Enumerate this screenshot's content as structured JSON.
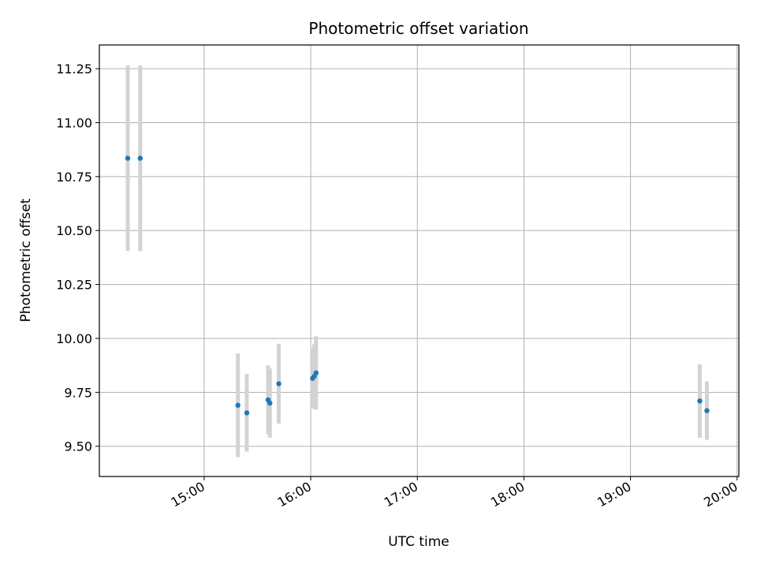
{
  "chart_data": {
    "type": "scatter",
    "title": "Photometric offset variation",
    "xlabel": "UTC time",
    "ylabel": "Photometric offset",
    "x_ticks": [
      "15:00",
      "16:00",
      "17:00",
      "18:00",
      "19:00",
      "20:00"
    ],
    "y_ticks": [
      "9.50",
      "9.75",
      "10.00",
      "10.25",
      "10.50",
      "10.75",
      "11.00",
      "11.25"
    ],
    "xlim": [
      "14:01",
      "20:01"
    ],
    "ylim": [
      9.36,
      11.36
    ],
    "grid": true,
    "point_color": "#1f77b4",
    "errorbar_color": "#d3d3d3",
    "points": [
      {
        "time": "14:17",
        "y": 10.835,
        "yerr": 0.43
      },
      {
        "time": "14:24",
        "y": 10.835,
        "yerr": 0.43
      },
      {
        "time": "15:19",
        "y": 9.69,
        "yerr": 0.24
      },
      {
        "time": "15:24",
        "y": 9.655,
        "yerr": 0.18
      },
      {
        "time": "15:36",
        "y": 9.715,
        "yerr": 0.16
      },
      {
        "time": "15:37",
        "y": 9.7,
        "yerr": 0.16
      },
      {
        "time": "15:42",
        "y": 9.79,
        "yerr": 0.185
      },
      {
        "time": "16:01",
        "y": 9.815,
        "yerr": 0.14
      },
      {
        "time": "16:02",
        "y": 9.825,
        "yerr": 0.15
      },
      {
        "time": "16:03",
        "y": 9.84,
        "yerr": 0.17
      },
      {
        "time": "19:39",
        "y": 9.71,
        "yerr": 0.17
      },
      {
        "time": "19:43",
        "y": 9.665,
        "yerr": 0.135
      }
    ]
  }
}
